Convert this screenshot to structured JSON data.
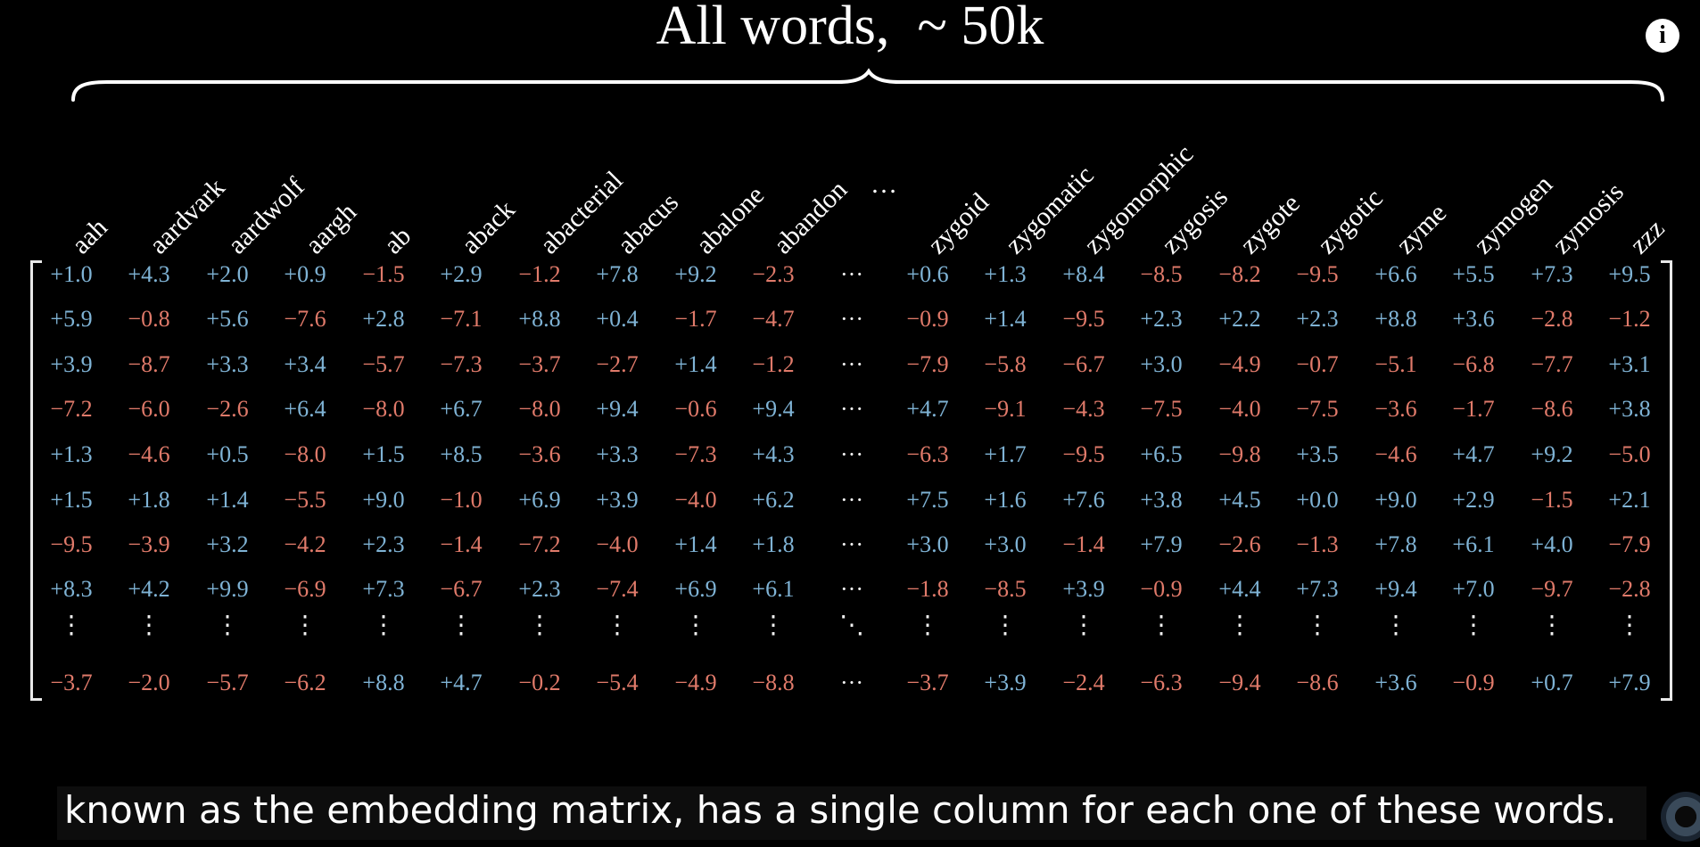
{
  "title": "All words,  ~ 50k",
  "info_icon": "i",
  "ellipsis": "…",
  "hdots": "···",
  "vdots": "⋮",
  "ddots": "⋱",
  "colors": {
    "positive": "#7fb3d5",
    "negative": "#e07a6a",
    "neutral": "#f2f2f2"
  },
  "columns_left": [
    "aah",
    "aardvark",
    "aardwolf",
    "aargh",
    "ab",
    "aback",
    "abacterial",
    "abacus",
    "abalone",
    "abandon"
  ],
  "columns_right": [
    "zygoid",
    "zygomatic",
    "zygomorphic",
    "zygosis",
    "zygote",
    "zygotic",
    "zyme",
    "zymogen",
    "zymosis",
    "zzz"
  ],
  "rows": [
    {
      "left": [
        "+1.0",
        "+4.3",
        "+2.0",
        "+0.9",
        "−1.5",
        "+2.9",
        "−1.2",
        "+7.8",
        "+9.2",
        "−2.3"
      ],
      "right": [
        "+0.6",
        "+1.3",
        "+8.4",
        "−8.5",
        "−8.2",
        "−9.5",
        "+6.6",
        "+5.5",
        "+7.3",
        "+9.5"
      ]
    },
    {
      "left": [
        "+5.9",
        "−0.8",
        "+5.6",
        "−7.6",
        "+2.8",
        "−7.1",
        "+8.8",
        "+0.4",
        "−1.7",
        "−4.7"
      ],
      "right": [
        "−0.9",
        "+1.4",
        "−9.5",
        "+2.3",
        "+2.2",
        "+2.3",
        "+8.8",
        "+3.6",
        "−2.8",
        "−1.2"
      ]
    },
    {
      "left": [
        "+3.9",
        "−8.7",
        "+3.3",
        "+3.4",
        "−5.7",
        "−7.3",
        "−3.7",
        "−2.7",
        "+1.4",
        "−1.2"
      ],
      "right": [
        "−7.9",
        "−5.8",
        "−6.7",
        "+3.0",
        "−4.9",
        "−0.7",
        "−5.1",
        "−6.8",
        "−7.7",
        "+3.1"
      ]
    },
    {
      "left": [
        "−7.2",
        "−6.0",
        "−2.6",
        "+6.4",
        "−8.0",
        "+6.7",
        "−8.0",
        "+9.4",
        "−0.6",
        "+9.4"
      ],
      "right": [
        "+4.7",
        "−9.1",
        "−4.3",
        "−7.5",
        "−4.0",
        "−7.5",
        "−3.6",
        "−1.7",
        "−8.6",
        "+3.8"
      ]
    },
    {
      "left": [
        "+1.3",
        "−4.6",
        "+0.5",
        "−8.0",
        "+1.5",
        "+8.5",
        "−3.6",
        "+3.3",
        "−7.3",
        "+4.3"
      ],
      "right": [
        "−6.3",
        "+1.7",
        "−9.5",
        "+6.5",
        "−9.8",
        "+3.5",
        "−4.6",
        "+4.7",
        "+9.2",
        "−5.0"
      ]
    },
    {
      "left": [
        "+1.5",
        "+1.8",
        "+1.4",
        "−5.5",
        "+9.0",
        "−1.0",
        "+6.9",
        "+3.9",
        "−4.0",
        "+6.2"
      ],
      "right": [
        "+7.5",
        "+1.6",
        "+7.6",
        "+3.8",
        "+4.5",
        "+0.0",
        "+9.0",
        "+2.9",
        "−1.5",
        "+2.1"
      ]
    },
    {
      "left": [
        "−9.5",
        "−3.9",
        "+3.2",
        "−4.2",
        "+2.3",
        "−1.4",
        "−7.2",
        "−4.0",
        "+1.4",
        "+1.8"
      ],
      "right": [
        "+3.0",
        "+3.0",
        "−1.4",
        "+7.9",
        "−2.6",
        "−1.3",
        "+7.8",
        "+6.1",
        "+4.0",
        "−7.9"
      ]
    },
    {
      "left": [
        "+8.3",
        "+4.2",
        "+9.9",
        "−6.9",
        "+7.3",
        "−6.7",
        "+2.3",
        "−7.4",
        "+6.9",
        "+6.1"
      ],
      "right": [
        "−1.8",
        "−8.5",
        "+3.9",
        "−0.9",
        "+4.4",
        "+7.3",
        "+9.4",
        "+7.0",
        "−9.7",
        "−2.8"
      ]
    }
  ],
  "last_row": {
    "left": [
      "−3.7",
      "−2.0",
      "−5.7",
      "−6.2",
      "+8.8",
      "+4.7",
      "−0.2",
      "−5.4",
      "−4.9",
      "−8.8"
    ],
    "right": [
      "−3.7",
      "+3.9",
      "−2.4",
      "−6.3",
      "−9.4",
      "−8.6",
      "+3.6",
      "−0.9",
      "+0.7",
      "+7.9"
    ]
  },
  "subtitle": "known as the embedding matrix, has a single column for each one of these words."
}
